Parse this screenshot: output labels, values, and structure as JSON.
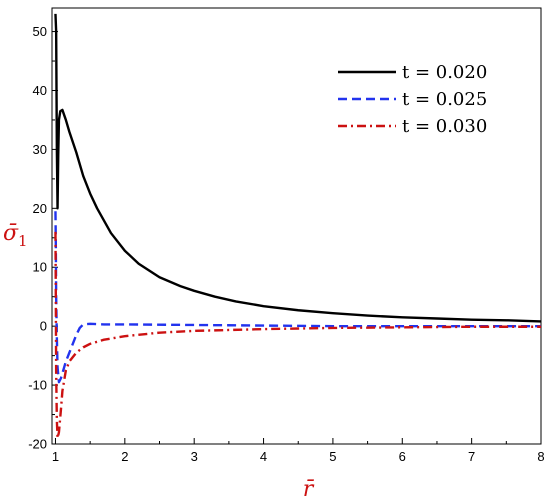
{
  "chart_data": {
    "type": "line",
    "xlabel": "r̄",
    "ylabel": "σ̄",
    "ylabel_subscript": "1",
    "xlim": [
      0.95,
      8
    ],
    "ylim": [
      -20,
      54
    ],
    "x_ticks": [
      1,
      2,
      3,
      4,
      5,
      6,
      7,
      8
    ],
    "y_ticks": [
      -20,
      -10,
      0,
      10,
      20,
      30,
      40,
      50
    ],
    "grid": false,
    "legend_position": "top-right",
    "axis_title_color": "#cc1111",
    "series": [
      {
        "name": "t = 0.020",
        "color": "#000000",
        "dash": "solid",
        "x": [
          1.0,
          1.01,
          1.02,
          1.03,
          1.04,
          1.05,
          1.07,
          1.1,
          1.15,
          1.2,
          1.3,
          1.4,
          1.5,
          1.6,
          1.8,
          2.0,
          2.2,
          2.5,
          2.8,
          3.0,
          3.3,
          3.6,
          4.0,
          4.5,
          5.0,
          5.5,
          6.0,
          6.5,
          7.0,
          7.5,
          8.0
        ],
        "y": [
          53,
          50,
          30,
          20,
          29,
          35,
          36.5,
          36.7,
          35,
          33,
          29.5,
          25.5,
          22.5,
          20,
          15.8,
          12.8,
          10.6,
          8.3,
          6.8,
          6.0,
          5.0,
          4.2,
          3.4,
          2.7,
          2.2,
          1.8,
          1.5,
          1.3,
          1.1,
          1.0,
          0.8
        ]
      },
      {
        "name": "t = 0.025",
        "color": "#2233ee",
        "dash": "dashed",
        "x": [
          1.0,
          1.005,
          1.01,
          1.02,
          1.03,
          1.05,
          1.08,
          1.1,
          1.15,
          1.2,
          1.25,
          1.3,
          1.35,
          1.4,
          1.5,
          1.7,
          2.0,
          3.0,
          4.0,
          5.0,
          6.0,
          7.0,
          8.0
        ],
        "y": [
          19.5,
          14,
          5,
          -2,
          -7,
          -9.5,
          -8.8,
          -8,
          -6,
          -4.5,
          -3,
          -1.5,
          -0.3,
          0.3,
          0.4,
          0.3,
          0.3,
          0.2,
          0.1,
          0.0,
          0.0,
          0.0,
          0.0
        ]
      },
      {
        "name": "t = 0.030",
        "color": "#cc1111",
        "dash": "dashdot",
        "x": [
          1.0,
          1.005,
          1.01,
          1.02,
          1.03,
          1.05,
          1.08,
          1.1,
          1.15,
          1.2,
          1.3,
          1.4,
          1.5,
          1.7,
          2.0,
          2.5,
          3.0,
          4.0,
          5.0,
          6.0,
          7.0,
          8.0
        ],
        "y": [
          16,
          5,
          -8,
          -16,
          -19,
          -18,
          -14,
          -11,
          -7.5,
          -6,
          -4.5,
          -3.6,
          -3.0,
          -2.3,
          -1.7,
          -1.1,
          -0.8,
          -0.5,
          -0.3,
          -0.2,
          -0.1,
          -0.1
        ]
      }
    ]
  }
}
